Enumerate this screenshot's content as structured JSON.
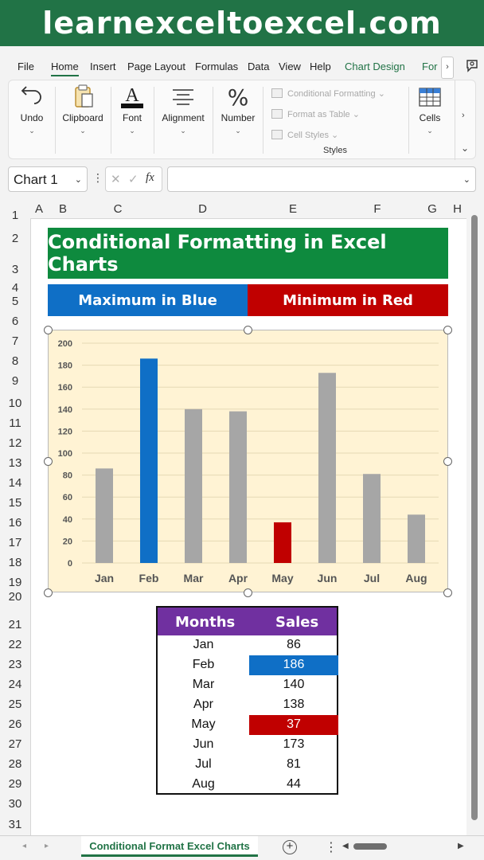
{
  "banner": {
    "text": "learnexceltoexcel.com"
  },
  "ribbon": {
    "tabs": [
      "File",
      "Home",
      "Insert",
      "Page Layout",
      "Formulas",
      "Data",
      "View",
      "Help",
      "Chart Design",
      "For"
    ],
    "active_tab": "Home",
    "groups": {
      "undo": "Undo",
      "clipboard": "Clipboard",
      "font": "Font",
      "alignment": "Alignment",
      "number": "Number",
      "cells": "Cells"
    },
    "styles": {
      "conditional_formatting": "Conditional Formatting",
      "format_as_table": "Format as Table",
      "cell_styles": "Cell Styles",
      "label": "Styles"
    }
  },
  "formula_bar": {
    "name_box": "Chart 1",
    "fx": "fx",
    "cancel": "✕",
    "enter": "✓",
    "value": ""
  },
  "grid": {
    "columns": [
      "A",
      "B",
      "C",
      "D",
      "E",
      "F",
      "G",
      "H"
    ],
    "rows": [
      "1",
      "2",
      "3",
      "4",
      "5",
      "6",
      "7",
      "8",
      "9",
      "10",
      "11",
      "12",
      "13",
      "14",
      "15",
      "16",
      "17",
      "18",
      "19",
      "20",
      "21",
      "22",
      "23",
      "24",
      "25",
      "26",
      "27",
      "28",
      "29",
      "30",
      "31"
    ]
  },
  "sheet": {
    "title": "Conditional Formatting in Excel Charts",
    "max_label": "Maximum in Blue",
    "min_label": "Minimum in Red",
    "colors": {
      "title_bg": "#0e8a3e",
      "max": "#0f6fc6",
      "min": "#c00000",
      "bar": "#a6a6a6",
      "header": "#7030a0"
    }
  },
  "chart_data": {
    "type": "bar",
    "categories": [
      "Jan",
      "Feb",
      "Mar",
      "Apr",
      "May",
      "Jun",
      "Jul",
      "Aug"
    ],
    "values": [
      86,
      186,
      140,
      138,
      37,
      173,
      81,
      44
    ],
    "highlight": {
      "max_index": 1,
      "min_index": 4
    },
    "yticks": [
      0,
      20,
      40,
      60,
      80,
      100,
      120,
      140,
      160,
      180,
      200
    ],
    "ylim": [
      0,
      200
    ],
    "grid": true,
    "title": "",
    "xlabel": "",
    "ylabel": ""
  },
  "table": {
    "headers": [
      "Months",
      "Sales"
    ],
    "rows": [
      {
        "month": "Jan",
        "sales": "86"
      },
      {
        "month": "Feb",
        "sales": "186"
      },
      {
        "month": "Mar",
        "sales": "140"
      },
      {
        "month": "Apr",
        "sales": "138"
      },
      {
        "month": "May",
        "sales": "37"
      },
      {
        "month": "Jun",
        "sales": "173"
      },
      {
        "month": "Jul",
        "sales": "81"
      },
      {
        "month": "Aug",
        "sales": "44"
      }
    ]
  },
  "sheet_tabs": {
    "active": "Conditional Format Excel Charts",
    "add": "+"
  }
}
